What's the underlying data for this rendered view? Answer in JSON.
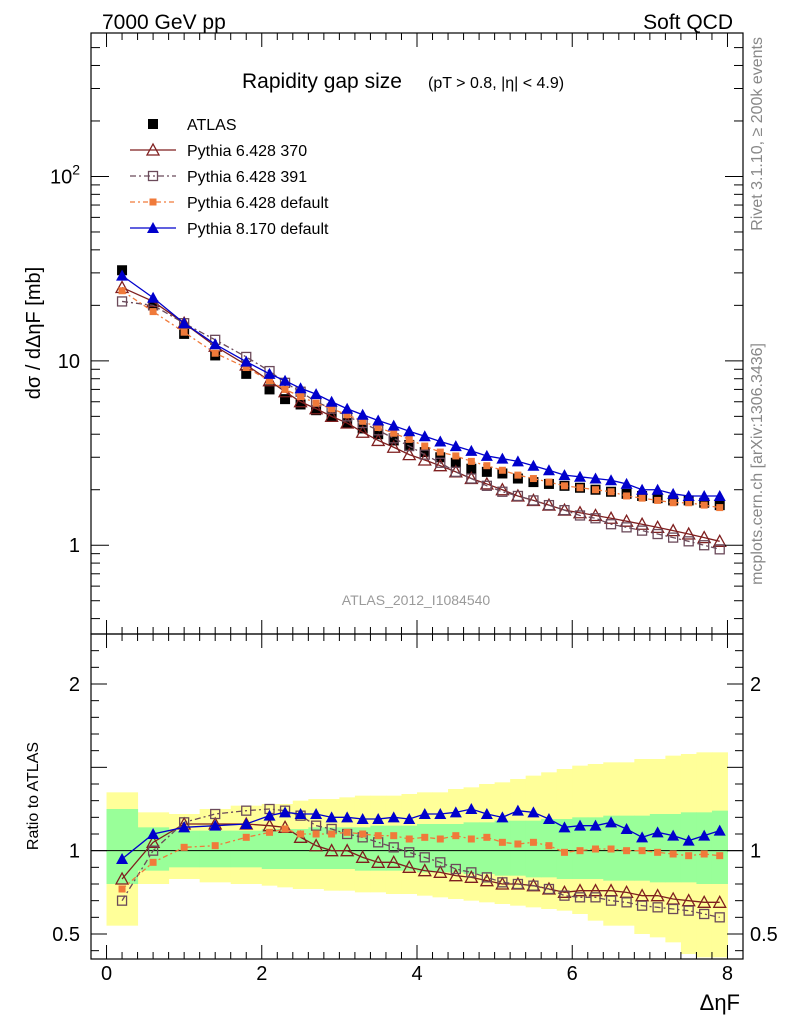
{
  "header": {
    "left": "7000 GeV pp",
    "right": "Soft QCD"
  },
  "side_text": {
    "rivet": "Rivet 3.1.10, ≥ 200k events",
    "mcplots": "mcplots.cern.ch [arXiv:1306.3436]"
  },
  "chart_data": [
    {
      "type": "line",
      "title": "Rapidity gap size",
      "subtitle": "(pT > 0.8, |η| < 4.9)",
      "ylabel": "dσ / dΔηF [mb]",
      "xlabel": "",
      "yscale": "log",
      "xlim": [
        -0.2,
        8.2
      ],
      "ylim": [
        0.33,
        600
      ],
      "grid": false,
      "legend_position": "top-left",
      "watermark": "ATLAS_2012_I1084540",
      "y_tick_labels": [
        "1",
        "10",
        "10^2"
      ],
      "x": [
        0.2,
        0.6,
        1.0,
        1.4,
        1.8,
        2.1,
        2.3,
        2.5,
        2.7,
        2.9,
        3.1,
        3.3,
        3.5,
        3.7,
        3.9,
        4.1,
        4.3,
        4.5,
        4.7,
        4.9,
        5.1,
        5.3,
        5.5,
        5.7,
        5.9,
        6.1,
        6.3,
        6.5,
        6.7,
        6.9,
        7.1,
        7.3,
        7.5,
        7.7,
        7.9
      ],
      "series": [
        {
          "name": "ATLAS",
          "marker": "filled-square",
          "color": "#000000",
          "values": [
            31,
            20,
            14,
            10.7,
            8.5,
            7.0,
            6.2,
            5.8,
            5.4,
            5.0,
            4.6,
            4.3,
            4.0,
            3.7,
            3.5,
            3.2,
            3.0,
            2.8,
            2.6,
            2.5,
            2.45,
            2.3,
            2.2,
            2.15,
            2.1,
            2.05,
            2.0,
            1.95,
            1.9,
            1.85,
            1.8,
            1.75,
            1.75,
            1.7,
            1.65
          ]
        },
        {
          "name": "Pythia 6.428 370",
          "marker": "open-triangle",
          "color": "#7f1f1f",
          "values": [
            25,
            21,
            16,
            12,
            9.5,
            7.8,
            6.8,
            6.0,
            5.5,
            5.0,
            4.6,
            4.1,
            3.7,
            3.4,
            3.1,
            2.9,
            2.7,
            2.5,
            2.3,
            2.15,
            2.0,
            1.85,
            1.75,
            1.65,
            1.55,
            1.5,
            1.45,
            1.4,
            1.35,
            1.3,
            1.25,
            1.2,
            1.15,
            1.1,
            1.05
          ]
        },
        {
          "name": "Pythia 6.428 391",
          "marker": "open-square",
          "color": "#6b4a5a",
          "values": [
            21,
            20,
            16,
            13,
            10.5,
            8.8,
            7.6,
            6.8,
            6.0,
            5.5,
            5.0,
            4.6,
            4.2,
            3.8,
            3.45,
            3.1,
            2.8,
            2.5,
            2.3,
            2.1,
            1.95,
            1.85,
            1.75,
            1.65,
            1.55,
            1.45,
            1.4,
            1.3,
            1.25,
            1.2,
            1.15,
            1.1,
            1.05,
            1.0,
            0.95
          ]
        },
        {
          "name": "Pythia 6.428 default",
          "marker": "filled-small-square",
          "color": "#f07a3a",
          "values": [
            24,
            18.5,
            14.3,
            11,
            9.2,
            7.8,
            7.0,
            6.4,
            5.9,
            5.5,
            5.1,
            4.7,
            4.35,
            4.05,
            3.75,
            3.45,
            3.2,
            3.05,
            2.85,
            2.7,
            2.55,
            2.4,
            2.3,
            2.2,
            2.1,
            2.05,
            2.0,
            1.95,
            1.85,
            1.8,
            1.75,
            1.7,
            1.7,
            1.65,
            1.6
          ]
        },
        {
          "name": "Pythia 8.170 default",
          "marker": "filled-triangle",
          "color": "#0000cc",
          "values": [
            29,
            22,
            16,
            12.3,
            9.9,
            8.5,
            7.8,
            7.1,
            6.6,
            6.0,
            5.5,
            5.1,
            4.75,
            4.45,
            4.15,
            3.9,
            3.65,
            3.45,
            3.25,
            3.05,
            2.95,
            2.85,
            2.7,
            2.55,
            2.4,
            2.35,
            2.3,
            2.25,
            2.15,
            2.0,
            2.0,
            1.9,
            1.85,
            1.85,
            1.85
          ]
        }
      ]
    },
    {
      "type": "line",
      "ylabel": "Ratio to ATLAS",
      "xlabel": "ΔηF",
      "xlim": [
        -0.2,
        8.2
      ],
      "ylim": [
        0.35,
        2.3
      ],
      "grid": false,
      "x_tick_labels": [
        "0",
        "2",
        "4",
        "6",
        "8"
      ],
      "y_tick_labels": [
        "0.5",
        "1",
        "2"
      ],
      "band_edges": [
        0,
        0.4,
        0.8,
        1.2,
        1.6,
        2.0,
        2.2,
        2.4,
        2.6,
        2.8,
        3.0,
        3.2,
        3.4,
        3.6,
        3.8,
        4.0,
        4.2,
        4.4,
        4.6,
        4.8,
        5.0,
        5.2,
        5.4,
        5.6,
        5.8,
        6.0,
        6.2,
        6.4,
        6.6,
        6.8,
        7.0,
        7.2,
        7.4,
        7.6,
        7.8,
        8.0
      ],
      "band_inner": {
        "color": "#99ff99",
        "lo": [
          0.8,
          0.88,
          0.9,
          0.9,
          0.9,
          0.89,
          0.89,
          0.89,
          0.89,
          0.89,
          0.89,
          0.88,
          0.88,
          0.88,
          0.88,
          0.87,
          0.87,
          0.87,
          0.86,
          0.86,
          0.85,
          0.85,
          0.84,
          0.84,
          0.83,
          0.83,
          0.83,
          0.82,
          0.82,
          0.82,
          0.81,
          0.81,
          0.81,
          0.8,
          0.8
        ],
        "hi": [
          1.25,
          1.14,
          1.12,
          1.12,
          1.12,
          1.13,
          1.13,
          1.13,
          1.14,
          1.14,
          1.14,
          1.14,
          1.15,
          1.15,
          1.15,
          1.16,
          1.16,
          1.16,
          1.17,
          1.17,
          1.18,
          1.18,
          1.18,
          1.19,
          1.19,
          1.2,
          1.2,
          1.21,
          1.21,
          1.21,
          1.22,
          1.22,
          1.23,
          1.23,
          1.24
        ]
      },
      "band_outer": {
        "color": "#ffff99",
        "lo": [
          0.55,
          0.8,
          0.83,
          0.81,
          0.8,
          0.79,
          0.78,
          0.77,
          0.77,
          0.76,
          0.76,
          0.75,
          0.75,
          0.74,
          0.74,
          0.73,
          0.72,
          0.71,
          0.7,
          0.69,
          0.68,
          0.67,
          0.66,
          0.65,
          0.64,
          0.62,
          0.58,
          0.55,
          0.55,
          0.5,
          0.48,
          0.45,
          0.38,
          0.36,
          0.36
        ],
        "hi": [
          1.35,
          1.23,
          1.22,
          1.25,
          1.27,
          1.28,
          1.28,
          1.3,
          1.31,
          1.31,
          1.32,
          1.33,
          1.33,
          1.33,
          1.34,
          1.35,
          1.35,
          1.37,
          1.38,
          1.4,
          1.41,
          1.43,
          1.45,
          1.47,
          1.49,
          1.51,
          1.52,
          1.53,
          1.53,
          1.55,
          1.55,
          1.57,
          1.58,
          1.59,
          1.59
        ]
      },
      "reference_line": 1,
      "series": [
        {
          "name": "Pythia 6.428 370",
          "marker": "open-triangle",
          "color": "#7f1f1f",
          "values": [
            0.83,
            1.05,
            1.16,
            1.16,
            1.16,
            1.15,
            1.14,
            1.08,
            1.03,
            1.0,
            1.0,
            0.96,
            0.93,
            0.93,
            0.9,
            0.88,
            0.87,
            0.85,
            0.84,
            0.82,
            0.8,
            0.8,
            0.79,
            0.77,
            0.75,
            0.76,
            0.76,
            0.76,
            0.75,
            0.73,
            0.73,
            0.71,
            0.7,
            0.69,
            0.69
          ]
        },
        {
          "name": "Pythia 6.428 391",
          "marker": "open-square",
          "color": "#6b4a5a",
          "values": [
            0.7,
            1.0,
            1.17,
            1.22,
            1.24,
            1.25,
            1.24,
            1.21,
            1.15,
            1.13,
            1.1,
            1.08,
            1.05,
            1.02,
            0.99,
            0.96,
            0.93,
            0.89,
            0.87,
            0.84,
            0.81,
            0.8,
            0.79,
            0.77,
            0.73,
            0.72,
            0.72,
            0.7,
            0.69,
            0.67,
            0.66,
            0.65,
            0.64,
            0.62,
            0.6
          ]
        },
        {
          "name": "Pythia 6.428 default",
          "marker": "filled-small-square",
          "color": "#f07a3a",
          "values": [
            0.77,
            0.93,
            1.02,
            1.03,
            1.08,
            1.11,
            1.13,
            1.1,
            1.1,
            1.1,
            1.11,
            1.1,
            1.09,
            1.09,
            1.07,
            1.08,
            1.07,
            1.09,
            1.07,
            1.08,
            1.05,
            1.04,
            1.05,
            1.03,
            0.99,
            1.0,
            1.01,
            1.01,
            1.0,
            1.0,
            0.99,
            0.98,
            0.97,
            0.98,
            0.97
          ]
        },
        {
          "name": "Pythia 8.170 default",
          "marker": "filled-triangle",
          "color": "#0000cc",
          "values": [
            0.95,
            1.1,
            1.14,
            1.15,
            1.16,
            1.21,
            1.23,
            1.22,
            1.22,
            1.2,
            1.2,
            1.19,
            1.19,
            1.2,
            1.19,
            1.22,
            1.22,
            1.23,
            1.25,
            1.22,
            1.2,
            1.24,
            1.23,
            1.19,
            1.14,
            1.15,
            1.15,
            1.17,
            1.13,
            1.08,
            1.11,
            1.09,
            1.06,
            1.09,
            1.12
          ]
        }
      ]
    }
  ]
}
